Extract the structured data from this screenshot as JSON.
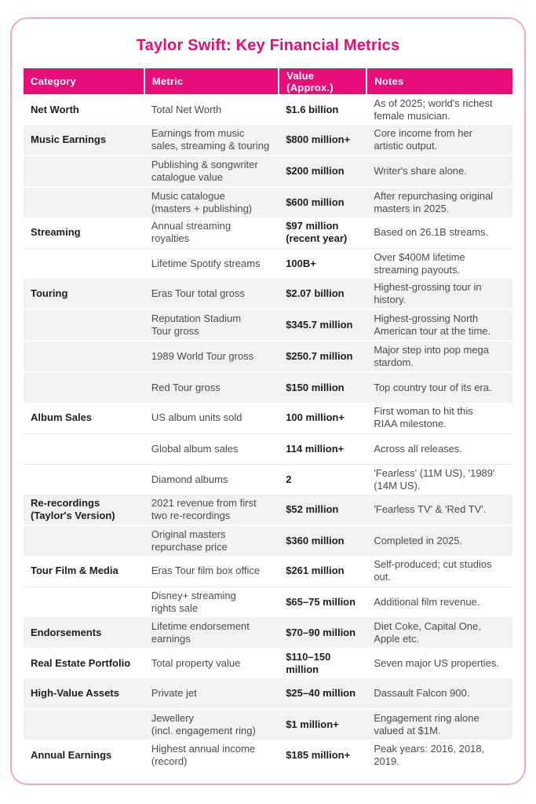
{
  "page": {
    "title": "Taylor Swift: Key Financial Metrics"
  },
  "colors": {
    "accent": "#E80D78",
    "card_border": "#F2A6C8",
    "row_shade": "#F2F2F2",
    "header_text": "#FFFFFF",
    "bold_text": "#1D1D1D",
    "body_text": "#4B4B4B"
  },
  "table": {
    "columns": [
      "Category",
      "Metric",
      "Value (Approx.)",
      "Notes"
    ],
    "rows": [
      {
        "category": "Net Worth",
        "metric": "Total Net Worth",
        "value": "$1.6 billion",
        "notes": "As of 2025; world's richest\nfemale musician.",
        "shaded": false
      },
      {
        "category": "Music Earnings",
        "metric": "Earnings from music\nsales, streaming & touring",
        "value": "$800 million+",
        "notes": "Core income from her\nartistic output.",
        "shaded": true
      },
      {
        "category": "",
        "metric": "Publishing & songwriter\ncatalogue value",
        "value": "$200 million",
        "notes": "Writer's share alone.",
        "shaded": true
      },
      {
        "category": "",
        "metric": "Music catalogue\n(masters + publishing)",
        "value": "$600 million",
        "notes": "After repurchasing original\nmasters in 2025.",
        "shaded": true
      },
      {
        "category": "Streaming",
        "metric": "Annual streaming\nroyalties",
        "value": "$97 million\n(recent year)",
        "notes": "Based on 26.1B streams.",
        "shaded": false
      },
      {
        "category": "",
        "metric": "Lifetime Spotify streams",
        "value": "100B+",
        "notes": "Over $400M lifetime\nstreaming payouts.",
        "shaded": false
      },
      {
        "category": "Touring",
        "metric": "Eras Tour total gross",
        "value": "$2.07 billion",
        "notes": "Highest-grossing tour in\nhistory.",
        "shaded": true
      },
      {
        "category": "",
        "metric": "Reputation Stadium\nTour gross",
        "value": "$345.7 million",
        "notes": "Highest-grossing North\nAmerican tour at the time.",
        "shaded": true
      },
      {
        "category": "",
        "metric": "1989 World Tour gross",
        "value": "$250.7 million",
        "notes": "Major step into pop mega\nstardom.",
        "shaded": true
      },
      {
        "category": "",
        "metric": "Red Tour gross",
        "value": "$150 million",
        "notes": "Top country tour of its era.",
        "shaded": true
      },
      {
        "category": "Album Sales",
        "metric": "US album units sold",
        "value": "100 million+",
        "notes": "First woman to hit this\nRIAA milestone.",
        "shaded": false
      },
      {
        "category": "",
        "metric": "Global album sales",
        "value": "114 million+",
        "notes": "Across all releases.",
        "shaded": false
      },
      {
        "category": "",
        "metric": "Diamond albums",
        "value": "2",
        "notes": "'Fearless' (11M US), '1989'\n(14M US).",
        "shaded": false
      },
      {
        "category": "Re-recordings\n(Taylor's Version)",
        "metric": "2021 revenue from first\ntwo re-recordings",
        "value": "$52 million",
        "notes": "'Fearless TV' & 'Red TV'.",
        "shaded": true
      },
      {
        "category": "",
        "metric": "Original masters\nrepurchase price",
        "value": "$360 million",
        "notes": "Completed in 2025.",
        "shaded": true
      },
      {
        "category": "Tour Film & Media",
        "metric": "Eras Tour film box office",
        "value": "$261 million",
        "notes": "Self-produced; cut studios\nout.",
        "shaded": false
      },
      {
        "category": "",
        "metric": "Disney+ streaming\nrights sale",
        "value": "$65–75 million",
        "notes": "Additional film revenue.",
        "shaded": false
      },
      {
        "category": "Endorsements",
        "metric": "Lifetime endorsement\nearnings",
        "value": "$70–90 million",
        "notes": "Diet Coke, Capital One,\nApple etc.",
        "shaded": true
      },
      {
        "category": "Real Estate Portfolio",
        "metric": "Total property value",
        "value": "$110–150 million",
        "notes": "Seven major US properties.",
        "shaded": false
      },
      {
        "category": "High-Value Assets",
        "metric": "Private jet",
        "value": "$25–40 million",
        "notes": "Dassault Falcon 900.",
        "shaded": true
      },
      {
        "category": "",
        "metric": "Jewellery\n(incl. engagement ring)",
        "value": "$1 million+",
        "notes": "Engagement ring alone\nvalued at $1M.",
        "shaded": true
      },
      {
        "category": "Annual Earnings",
        "metric": "Highest annual income\n(record)",
        "value": "$185 million+",
        "notes": "Peak years: 2016, 2018, 2019.",
        "shaded": false
      }
    ]
  }
}
